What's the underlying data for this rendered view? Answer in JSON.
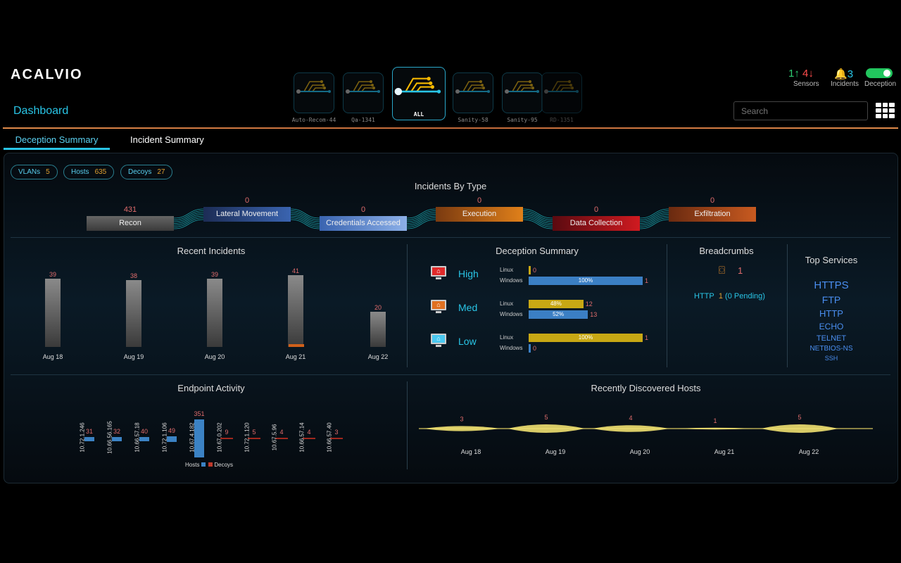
{
  "app": {
    "logo": "ACALVIO",
    "page_title": "Dashboard"
  },
  "tiles": [
    {
      "label": "Auto-Recom-44"
    },
    {
      "label": "Qa-1341"
    },
    {
      "label": "ALL"
    },
    {
      "label": "Sanity-58"
    },
    {
      "label": "Sanity-95"
    },
    {
      "label": "RD-1351"
    }
  ],
  "header": {
    "sensors_up": "1",
    "sensors_down": "4",
    "sensors_label": "Sensors",
    "incidents_count": "3",
    "incidents_label": "Incidents",
    "deception_label": "Deception",
    "search_placeholder": "Search",
    "accent": "#29c5e6"
  },
  "tabs": [
    {
      "label": "Deception Summary"
    },
    {
      "label": "Incident Summary"
    }
  ],
  "pills": [
    {
      "label": "VLANs",
      "value": "5"
    },
    {
      "label": "Hosts",
      "value": "635"
    },
    {
      "label": "Decoys",
      "value": "27"
    }
  ],
  "incidents_by_type": {
    "title": "Incidents By Type",
    "stages": [
      {
        "label": "Recon",
        "value": "431"
      },
      {
        "label": "Lateral Movement",
        "value": "0"
      },
      {
        "label": "Credentials Accessed",
        "value": "0"
      },
      {
        "label": "Execution",
        "value": "0"
      },
      {
        "label": "Data Collection",
        "value": "0"
      },
      {
        "label": "Exfiltration",
        "value": "0"
      }
    ]
  },
  "chart_data": [
    {
      "type": "bar",
      "title": "Recent Incidents",
      "categories": [
        "Aug 18",
        "Aug 19",
        "Aug 20",
        "Aug 21",
        "Aug 22"
      ],
      "values": [
        39,
        38,
        39,
        41,
        20
      ]
    },
    {
      "type": "bar",
      "title": "Endpoint Activity",
      "categories": [
        "10.72.1.246",
        "10.66.56.165",
        "10.66.57.18",
        "10.72.1.106",
        "10.67.4.182",
        "10.67.0.202",
        "10.72.1.120",
        "10.67.5.96",
        "10.66.57.14",
        "10.66.57.40"
      ],
      "values": [
        31,
        32,
        40,
        49,
        351,
        9,
        5,
        4,
        4,
        3
      ],
      "series_of": [
        "Hosts",
        "Hosts",
        "Hosts",
        "Hosts",
        "Hosts",
        "Decoys",
        "Decoys",
        "Decoys",
        "Decoys",
        "Decoys"
      ],
      "legend": [
        "Hosts",
        "Decoys"
      ]
    },
    {
      "type": "area",
      "title": "Recently Discovered Hosts",
      "categories": [
        "Aug 18",
        "Aug 19",
        "Aug 20",
        "Aug 21",
        "Aug 22"
      ],
      "values": [
        3,
        5,
        4,
        1,
        5
      ]
    }
  ],
  "deception_summary": {
    "title": "Deception Summary",
    "rows": [
      {
        "severity": "High",
        "linux_count": "0",
        "linux_pct": "",
        "linux_frac": 0,
        "windows_count": "1",
        "windows_pct": "100%",
        "windows_frac": 1
      },
      {
        "severity": "Med",
        "linux_count": "12",
        "linux_pct": "48%",
        "linux_frac": 0.48,
        "windows_count": "13",
        "windows_pct": "52%",
        "windows_frac": 0.52
      },
      {
        "severity": "Low",
        "linux_count": "1",
        "linux_pct": "100%",
        "linux_frac": 1,
        "windows_count": "0",
        "windows_pct": "",
        "windows_frac": 0
      }
    ],
    "linux_label": "Linux",
    "windows_label": "Windows"
  },
  "breadcrumbs": {
    "title": "Breadcrumbs",
    "count": "1",
    "proto": "HTTP",
    "proto_count": "1",
    "pending": "(0 Pending)"
  },
  "top_services": {
    "title": "Top Services",
    "items": [
      "HTTPS",
      "FTP",
      "HTTP",
      "ECHO",
      "TELNET",
      "NETBIOS-NS",
      "SSH"
    ]
  }
}
